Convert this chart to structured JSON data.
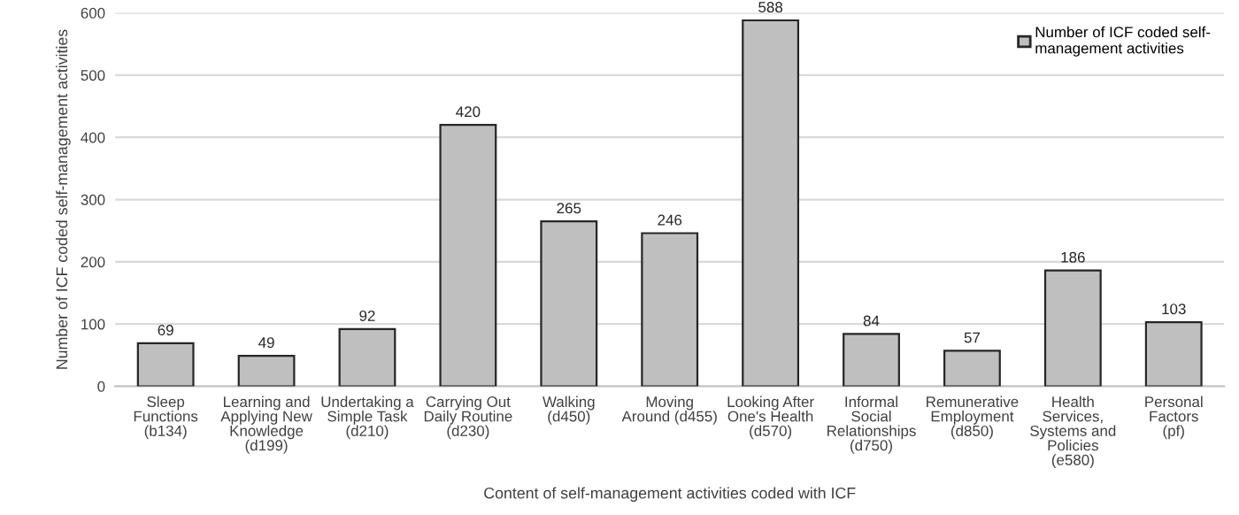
{
  "chart_data": {
    "type": "bar",
    "categories": [
      "Sleep\nFunctions\n(b134)",
      "Learning and\nApplying New\nKnowledge\n(d199)",
      "Undertaking a\nSimple Task\n(d210)",
      "Carrying Out\nDaily Routine\n(d230)",
      "Walking\n(d450)",
      "Moving\nAround (d455)",
      "Looking After\nOne's Health\n(d570)",
      "Informal\nSocial\nRelationships\n(d750)",
      "Remunerative\nEmployment\n(d850)",
      "Health\nServices,\nSystems and\nPolicies\n(e580)",
      "Personal\nFactors\n(pf)"
    ],
    "series": [
      {
        "name": "Number of ICF coded self-\nmanagement activities",
        "color": "#bfbfbf",
        "values": [
          69,
          49,
          92,
          420,
          265,
          246,
          588,
          84,
          57,
          186,
          103
        ]
      }
    ],
    "data_labels": true,
    "xlabel": "Content of self-management activities coded with ICF",
    "ylabel": "Number of ICF coded self-management activities",
    "ylim": [
      0,
      600
    ],
    "yticks": [
      0,
      100,
      200,
      300,
      400,
      500,
      600
    ],
    "grid": "y",
    "legend": "top right"
  }
}
